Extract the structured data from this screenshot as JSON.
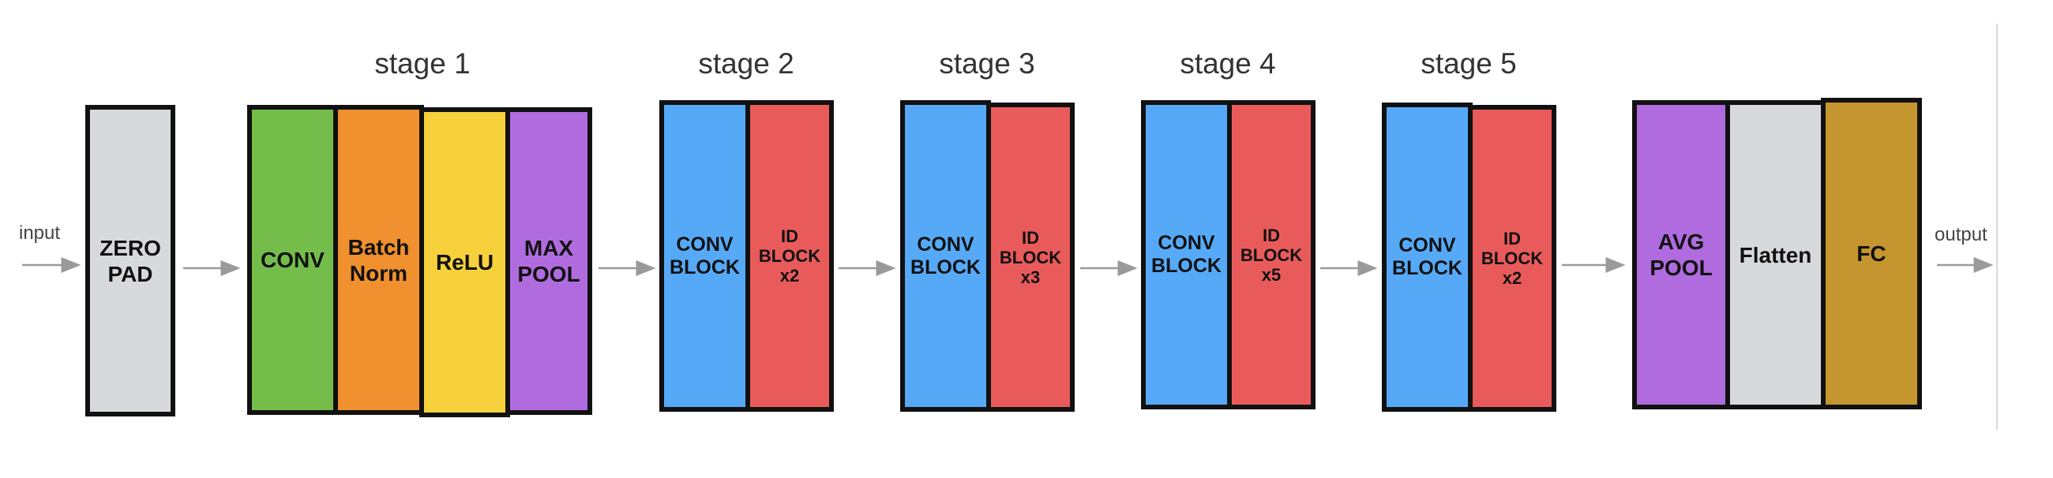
{
  "diagram": {
    "input_label": "input",
    "output_label": "output",
    "colors": {
      "gray": "#d8d9dc",
      "green": "#74bd4a",
      "orange": "#f0902e",
      "yellow": "#f7d13c",
      "purple": "#b06bdf",
      "blue": "#56a9f7",
      "red": "#e95b5b",
      "gold": "#c5952f",
      "arrow": "#9a9a9a"
    },
    "stages": [
      "stage 1",
      "stage 2",
      "stage 3",
      "stage 4",
      "stage 5"
    ],
    "blocks": {
      "zero_pad": "ZERO\nPAD",
      "conv": "CONV",
      "batch_norm": "Batch\nNorm",
      "relu": "ReLU",
      "max_pool": "MAX\nPOOL",
      "conv_block_2": "CONV\nBLOCK",
      "id_block_2": "ID\nBLOCK\nx2",
      "conv_block_3": "CONV\nBLOCK",
      "id_block_3": "ID\nBLOCK\nx3",
      "conv_block_4": "CONV\nBLOCK",
      "id_block_4": "ID\nBLOCK\nx5",
      "conv_block_5": "CONV\nBLOCK",
      "id_block_5": "ID\nBLOCK\nx2",
      "avg_pool": "AVG\nPOOL",
      "flatten": "Flatten",
      "fc": "FC"
    }
  }
}
